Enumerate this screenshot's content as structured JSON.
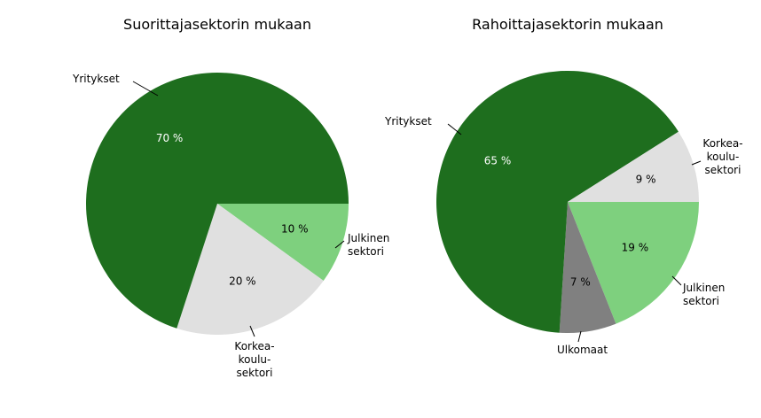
{
  "chart_data": [
    {
      "type": "pie",
      "title": "Suorittajasektorin mukaan",
      "categories": [
        "Julkinen\nsektori",
        "Korkea-\nkoulu-\nsektori",
        "Yritykset"
      ],
      "values": [
        10,
        20,
        70
      ],
      "value_labels": [
        "10 %",
        "20 %",
        "70 %"
      ],
      "colors": [
        "#7ed07e",
        "#e0e0e0",
        "#1e6e1e"
      ]
    },
    {
      "type": "pie",
      "title": "Rahoittajasektorin mukaan",
      "categories": [
        "Julkinen\nsektori",
        "Ulkomaat",
        "Yritykset",
        "Korkea-\nkoulu-\nsektori"
      ],
      "values": [
        19,
        7,
        65,
        9
      ],
      "value_labels": [
        "19 %",
        "7 %",
        "65 %",
        "9 %"
      ],
      "colors": [
        "#7ed07e",
        "#808080",
        "#1e6e1e",
        "#e0e0e0"
      ]
    }
  ]
}
